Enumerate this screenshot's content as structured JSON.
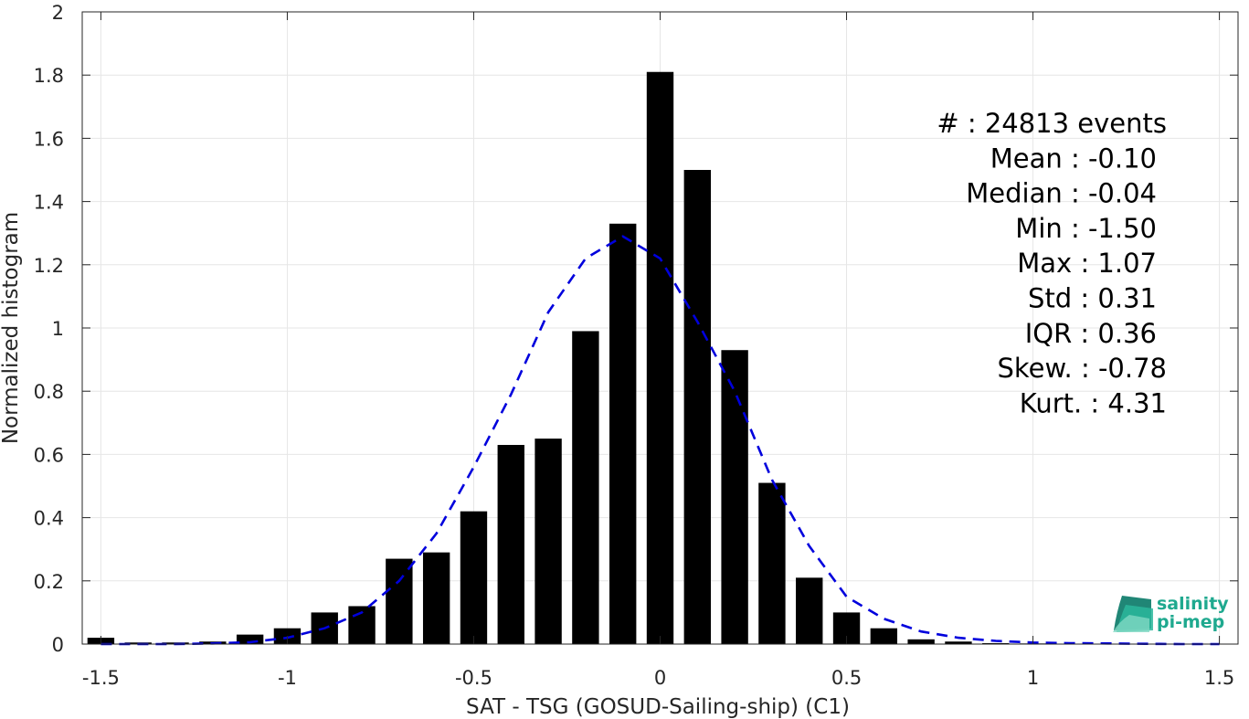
{
  "chart_data": {
    "type": "bar",
    "xlabel": "SAT - TSG (GOSUD-Sailing-ship) (C1)",
    "ylabel": "Normalized histogram",
    "xlim": [
      -1.55,
      1.55
    ],
    "ylim": [
      0,
      2
    ],
    "xticks": [
      -1.5,
      -1,
      -0.5,
      0,
      0.5,
      1,
      1.5
    ],
    "xtick_labels": [
      "-1.5",
      "-1",
      "-0.5",
      "0",
      "0.5",
      "1",
      "1.5"
    ],
    "yticks": [
      0,
      0.2,
      0.4,
      0.6,
      0.8,
      1,
      1.2,
      1.4,
      1.6,
      1.8,
      2
    ],
    "ytick_labels": [
      "0",
      "0.2",
      "0.4",
      "0.6",
      "0.8",
      "1",
      "1.2",
      "1.4",
      "1.6",
      "1.8",
      "2"
    ],
    "grid": true,
    "bin_width": 0.1,
    "bar_color": "#000000",
    "x": [
      -1.5,
      -1.4,
      -1.3,
      -1.2,
      -1.1,
      -1.0,
      -0.9,
      -0.8,
      -0.7,
      -0.6,
      -0.5,
      -0.4,
      -0.3,
      -0.2,
      -0.1,
      0.0,
      0.1,
      0.2,
      0.3,
      0.4,
      0.5,
      0.6,
      0.7,
      0.8,
      0.9,
      1.0,
      1.1,
      1.2,
      1.3,
      1.4,
      1.5
    ],
    "values": [
      0.02,
      0.005,
      0.005,
      0.008,
      0.03,
      0.05,
      0.1,
      0.12,
      0.27,
      0.29,
      0.42,
      0.63,
      0.65,
      0.99,
      1.33,
      1.81,
      1.5,
      0.93,
      0.51,
      0.21,
      0.1,
      0.05,
      0.015,
      0.008,
      0.003,
      0.002,
      0.001,
      0.001,
      0.001,
      0.0,
      0.0
    ],
    "fit_curve": {
      "style": "dashed",
      "color": "#0000dd",
      "x": [
        -1.5,
        -1.4,
        -1.3,
        -1.2,
        -1.1,
        -1.0,
        -0.9,
        -0.8,
        -0.7,
        -0.6,
        -0.5,
        -0.4,
        -0.3,
        -0.2,
        -0.1,
        0.0,
        0.1,
        0.2,
        0.3,
        0.4,
        0.5,
        0.6,
        0.7,
        0.8,
        0.9,
        1.0,
        1.1,
        1.2,
        1.3,
        1.4,
        1.5
      ],
      "y": [
        0.0,
        0.0,
        0.0,
        0.002,
        0.006,
        0.02,
        0.05,
        0.1,
        0.2,
        0.35,
        0.56,
        0.79,
        1.05,
        1.22,
        1.29,
        1.22,
        1.02,
        0.8,
        0.52,
        0.31,
        0.15,
        0.08,
        0.04,
        0.02,
        0.01,
        0.005,
        0.003,
        0.002,
        0.001,
        0.0,
        0.0
      ]
    }
  },
  "stats": [
    {
      "label": "#  : 24813 events",
      "align": "right-far"
    },
    {
      "label": "Mean : -0.10",
      "align": "right"
    },
    {
      "label": "Median : -0.04",
      "align": "right"
    },
    {
      "label": "Min : -1.50",
      "align": "right"
    },
    {
      "label": "Max : 1.07",
      "align": "right"
    },
    {
      "label": "Std : 0.31",
      "align": "right"
    },
    {
      "label": "IQR : 0.36",
      "align": "right"
    },
    {
      "label": "Skew. : -0.78",
      "align": "right-far"
    },
    {
      "label": "Kurt. : 4.31",
      "align": "right-far"
    }
  ],
  "logo": {
    "line1": "salinity",
    "line2": "pi-mep",
    "color": "#1fa98f"
  }
}
